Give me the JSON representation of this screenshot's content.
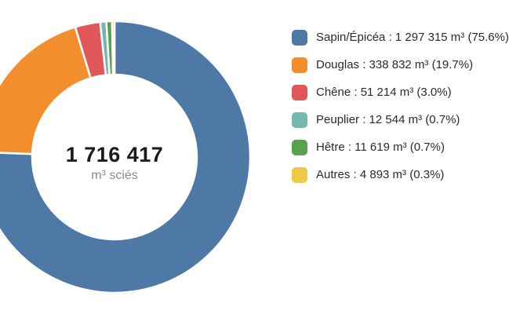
{
  "chart_data": {
    "type": "pie",
    "subtype": "donut",
    "title": "",
    "legend_position": "right",
    "start_angle_deg": 0,
    "direction": "clockwise",
    "center": {
      "total": "1 716 417",
      "unit": "m³ sciés"
    },
    "series": [
      {
        "name": "Sapin/Épicéa",
        "value": 1297315,
        "pct": 75.6,
        "color": "#4e79a7",
        "label": "Sapin/Épicéa : 1 297 315 m³ (75.6%)"
      },
      {
        "name": "Douglas",
        "value": 338832,
        "pct": 19.7,
        "color": "#f28e2b",
        "label": "Douglas : 338 832 m³ (19.7%)"
      },
      {
        "name": "Chêne",
        "value": 51214,
        "pct": 3.0,
        "color": "#e15759",
        "label": "Chêne : 51 214 m³ (3.0%)"
      },
      {
        "name": "Peuplier",
        "value": 12544,
        "pct": 0.7,
        "color": "#76b7b2",
        "label": "Peuplier : 12 544 m³ (0.7%)"
      },
      {
        "name": "Hêtre",
        "value": 11619,
        "pct": 0.7,
        "color": "#59a14f",
        "label": "Hêtre : 11 619 m³ (0.7%)"
      },
      {
        "name": "Autres",
        "value": 4893,
        "pct": 0.3,
        "color": "#edc948",
        "label": "Autres : 4 893 m³ (0.3%)"
      }
    ]
  }
}
